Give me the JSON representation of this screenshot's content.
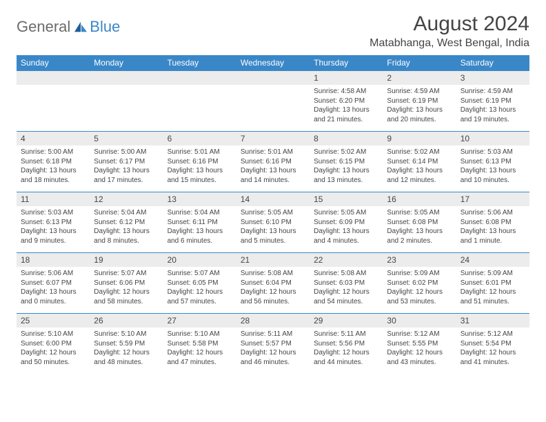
{
  "brand": {
    "general": "General",
    "blue": "Blue"
  },
  "title": "August 2024",
  "location": "Matabhanga, West Bengal, India",
  "colors": {
    "header_bg": "#3a87c8",
    "header_fg": "#ffffff",
    "daynum_bg": "#ececec",
    "text": "#444444",
    "logo_gray": "#6b6b6b",
    "logo_blue": "#3a87c8"
  },
  "weekdays": [
    "Sunday",
    "Monday",
    "Tuesday",
    "Wednesday",
    "Thursday",
    "Friday",
    "Saturday"
  ],
  "weeks": [
    {
      "nums": [
        "",
        "",
        "",
        "",
        "1",
        "2",
        "3"
      ],
      "cells": [
        null,
        null,
        null,
        null,
        {
          "sunrise": "4:58 AM",
          "sunset": "6:20 PM",
          "daylight": "13 hours and 21 minutes."
        },
        {
          "sunrise": "4:59 AM",
          "sunset": "6:19 PM",
          "daylight": "13 hours and 20 minutes."
        },
        {
          "sunrise": "4:59 AM",
          "sunset": "6:19 PM",
          "daylight": "13 hours and 19 minutes."
        }
      ]
    },
    {
      "nums": [
        "4",
        "5",
        "6",
        "7",
        "8",
        "9",
        "10"
      ],
      "cells": [
        {
          "sunrise": "5:00 AM",
          "sunset": "6:18 PM",
          "daylight": "13 hours and 18 minutes."
        },
        {
          "sunrise": "5:00 AM",
          "sunset": "6:17 PM",
          "daylight": "13 hours and 17 minutes."
        },
        {
          "sunrise": "5:01 AM",
          "sunset": "6:16 PM",
          "daylight": "13 hours and 15 minutes."
        },
        {
          "sunrise": "5:01 AM",
          "sunset": "6:16 PM",
          "daylight": "13 hours and 14 minutes."
        },
        {
          "sunrise": "5:02 AM",
          "sunset": "6:15 PM",
          "daylight": "13 hours and 13 minutes."
        },
        {
          "sunrise": "5:02 AM",
          "sunset": "6:14 PM",
          "daylight": "13 hours and 12 minutes."
        },
        {
          "sunrise": "5:03 AM",
          "sunset": "6:13 PM",
          "daylight": "13 hours and 10 minutes."
        }
      ]
    },
    {
      "nums": [
        "11",
        "12",
        "13",
        "14",
        "15",
        "16",
        "17"
      ],
      "cells": [
        {
          "sunrise": "5:03 AM",
          "sunset": "6:13 PM",
          "daylight": "13 hours and 9 minutes."
        },
        {
          "sunrise": "5:04 AM",
          "sunset": "6:12 PM",
          "daylight": "13 hours and 8 minutes."
        },
        {
          "sunrise": "5:04 AM",
          "sunset": "6:11 PM",
          "daylight": "13 hours and 6 minutes."
        },
        {
          "sunrise": "5:05 AM",
          "sunset": "6:10 PM",
          "daylight": "13 hours and 5 minutes."
        },
        {
          "sunrise": "5:05 AM",
          "sunset": "6:09 PM",
          "daylight": "13 hours and 4 minutes."
        },
        {
          "sunrise": "5:05 AM",
          "sunset": "6:08 PM",
          "daylight": "13 hours and 2 minutes."
        },
        {
          "sunrise": "5:06 AM",
          "sunset": "6:08 PM",
          "daylight": "13 hours and 1 minute."
        }
      ]
    },
    {
      "nums": [
        "18",
        "19",
        "20",
        "21",
        "22",
        "23",
        "24"
      ],
      "cells": [
        {
          "sunrise": "5:06 AM",
          "sunset": "6:07 PM",
          "daylight": "13 hours and 0 minutes."
        },
        {
          "sunrise": "5:07 AM",
          "sunset": "6:06 PM",
          "daylight": "12 hours and 58 minutes."
        },
        {
          "sunrise": "5:07 AM",
          "sunset": "6:05 PM",
          "daylight": "12 hours and 57 minutes."
        },
        {
          "sunrise": "5:08 AM",
          "sunset": "6:04 PM",
          "daylight": "12 hours and 56 minutes."
        },
        {
          "sunrise": "5:08 AM",
          "sunset": "6:03 PM",
          "daylight": "12 hours and 54 minutes."
        },
        {
          "sunrise": "5:09 AM",
          "sunset": "6:02 PM",
          "daylight": "12 hours and 53 minutes."
        },
        {
          "sunrise": "5:09 AM",
          "sunset": "6:01 PM",
          "daylight": "12 hours and 51 minutes."
        }
      ]
    },
    {
      "nums": [
        "25",
        "26",
        "27",
        "28",
        "29",
        "30",
        "31"
      ],
      "cells": [
        {
          "sunrise": "5:10 AM",
          "sunset": "6:00 PM",
          "daylight": "12 hours and 50 minutes."
        },
        {
          "sunrise": "5:10 AM",
          "sunset": "5:59 PM",
          "daylight": "12 hours and 48 minutes."
        },
        {
          "sunrise": "5:10 AM",
          "sunset": "5:58 PM",
          "daylight": "12 hours and 47 minutes."
        },
        {
          "sunrise": "5:11 AM",
          "sunset": "5:57 PM",
          "daylight": "12 hours and 46 minutes."
        },
        {
          "sunrise": "5:11 AM",
          "sunset": "5:56 PM",
          "daylight": "12 hours and 44 minutes."
        },
        {
          "sunrise": "5:12 AM",
          "sunset": "5:55 PM",
          "daylight": "12 hours and 43 minutes."
        },
        {
          "sunrise": "5:12 AM",
          "sunset": "5:54 PM",
          "daylight": "12 hours and 41 minutes."
        }
      ]
    }
  ],
  "labels": {
    "sunrise": "Sunrise:",
    "sunset": "Sunset:",
    "daylight": "Daylight:"
  }
}
